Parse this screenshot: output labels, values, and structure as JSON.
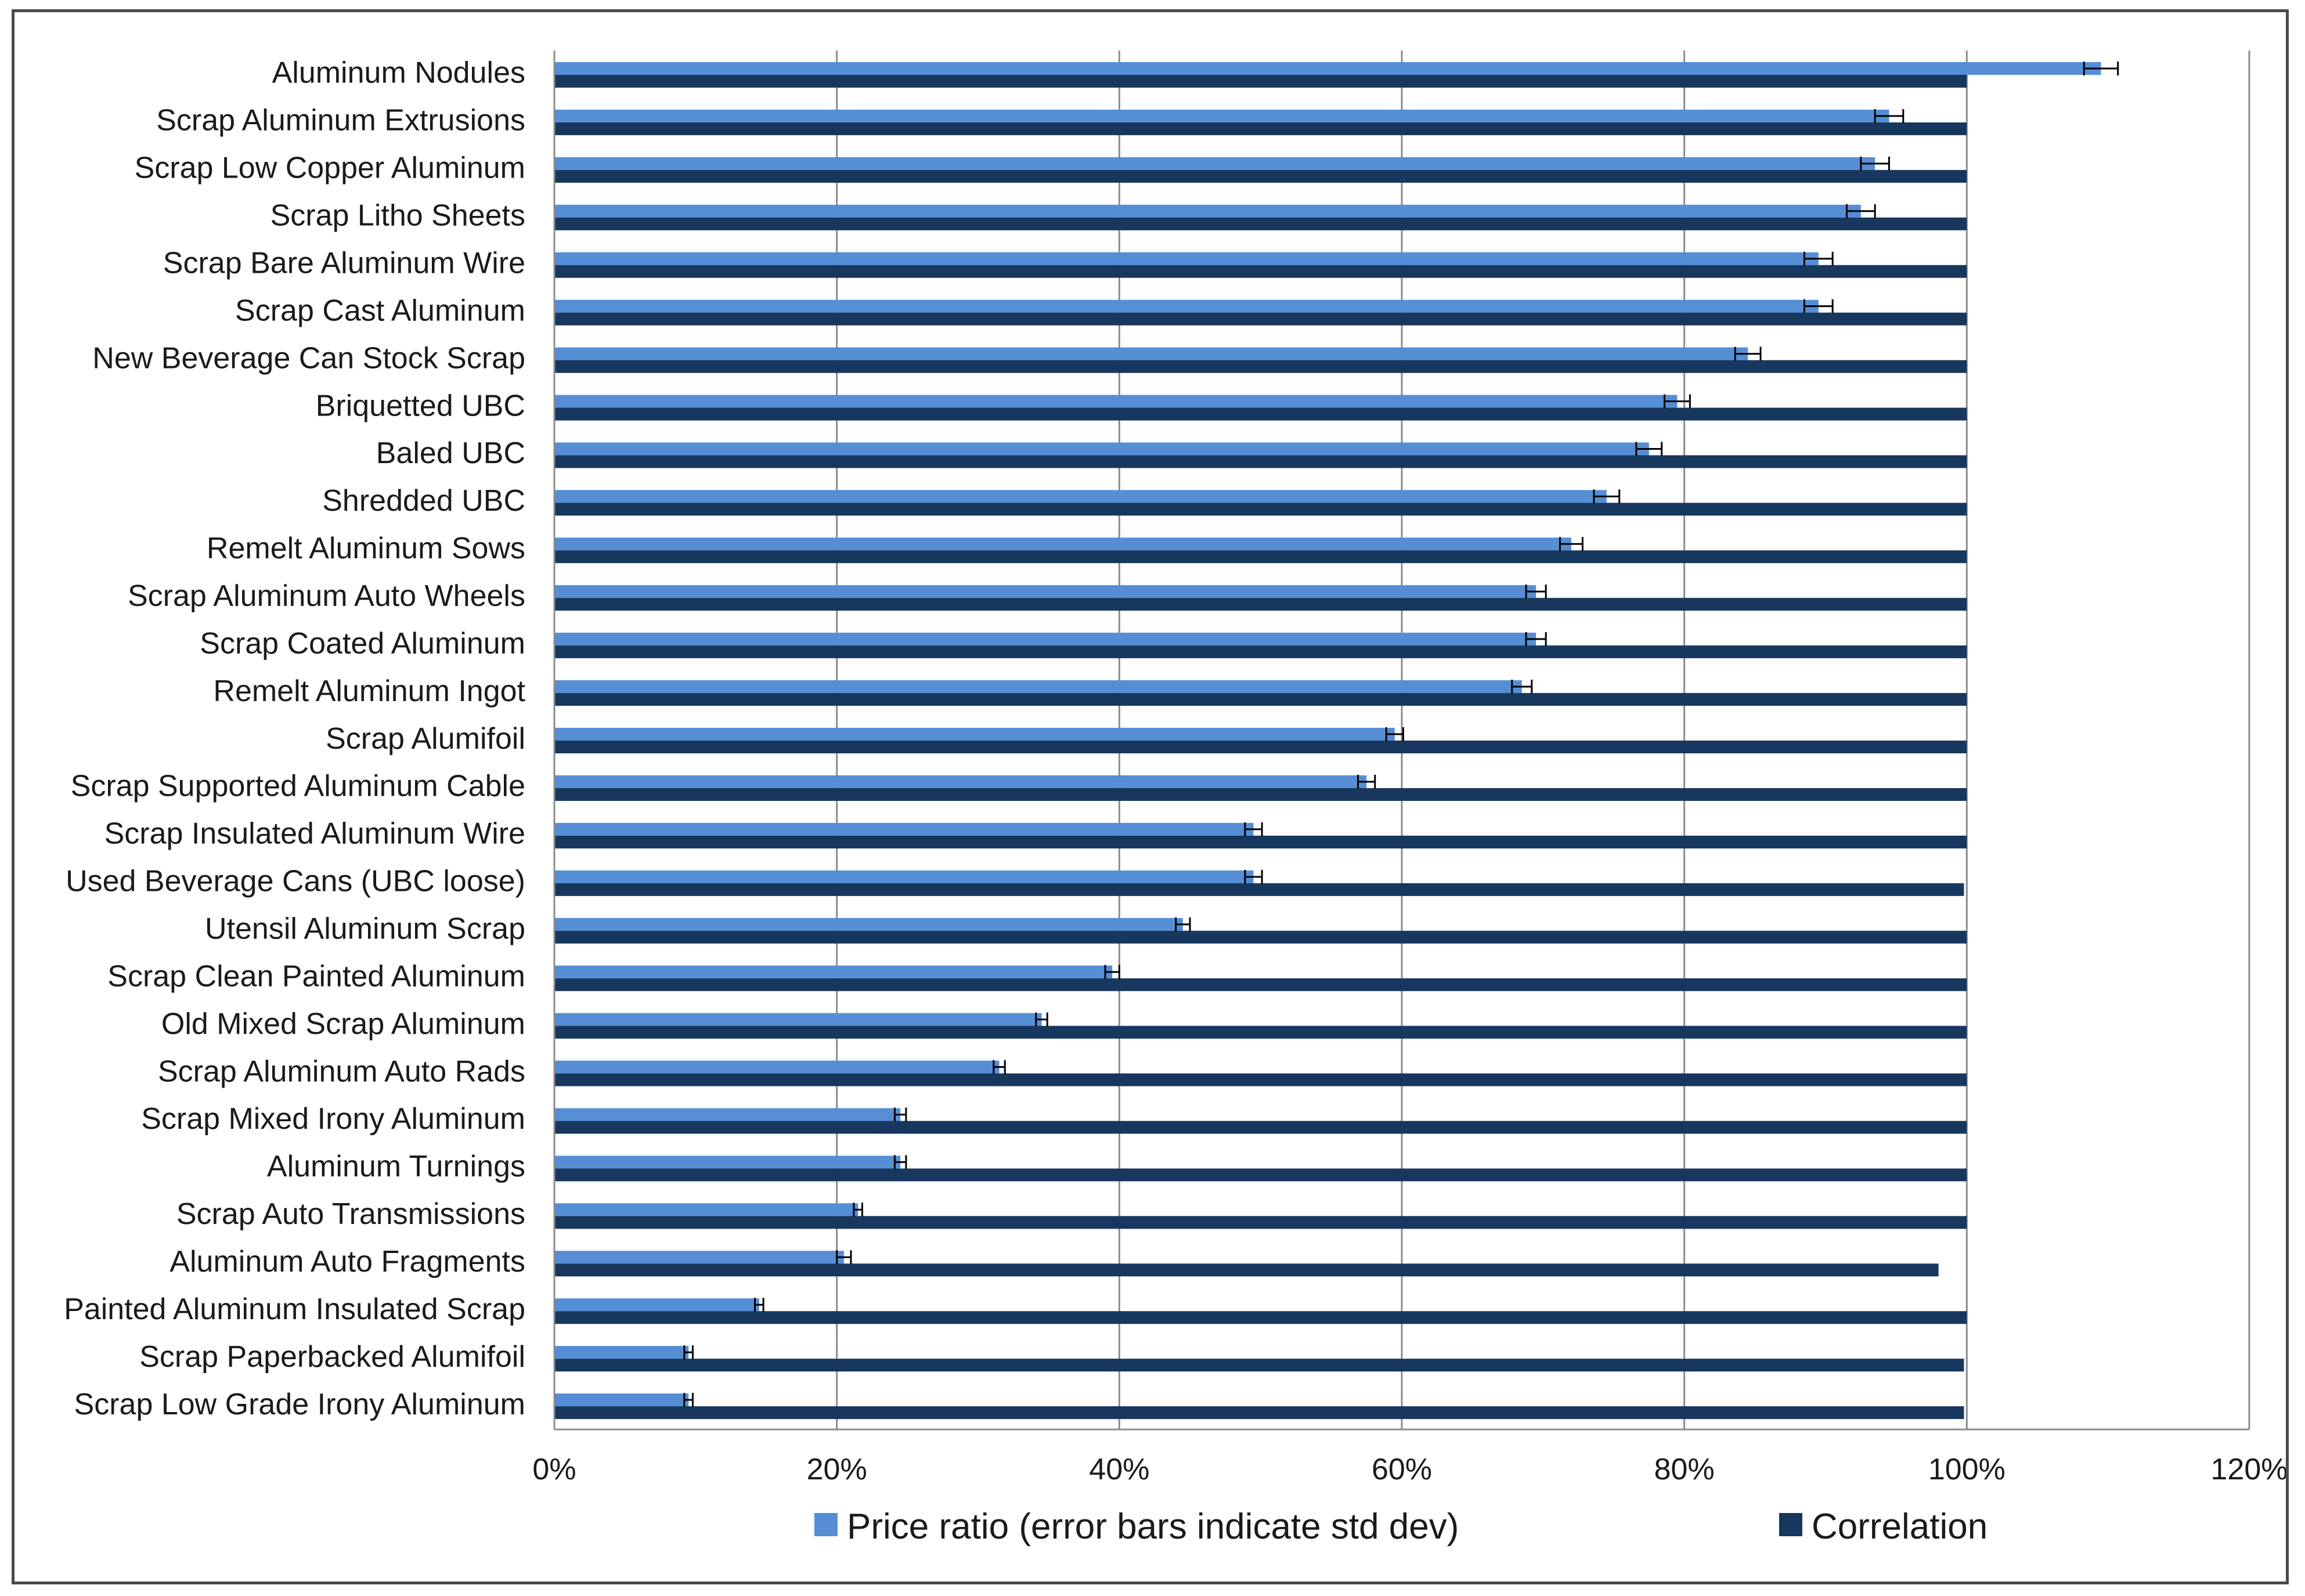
{
  "chart_data": {
    "type": "bar",
    "orientation": "horizontal",
    "title": "",
    "xlabel": "",
    "ylabel": "",
    "xlim": [
      0,
      1.2
    ],
    "x_ticks": [
      0,
      0.2,
      0.4,
      0.6,
      0.8,
      1.0,
      1.2
    ],
    "x_tick_labels": [
      "0%",
      "20%",
      "40%",
      "60%",
      "80%",
      "100%",
      "120%"
    ],
    "grid": true,
    "legend_position": "bottom",
    "categories": [
      "Aluminum Nodules",
      "Scrap Aluminum Extrusions",
      "Scrap Low Copper Aluminum",
      "Scrap Litho Sheets",
      "Scrap Bare Aluminum Wire",
      "Scrap Cast Aluminum",
      "New Beverage Can Stock Scrap",
      "Briquetted UBC",
      "Baled UBC",
      "Shredded UBC",
      "Remelt Aluminum Sows",
      "Scrap Aluminum Auto Wheels",
      "Scrap Coated Aluminum",
      "Remelt Aluminum Ingot",
      "Scrap Alumifoil",
      "Scrap Supported Aluminum Cable",
      "Scrap Insulated Aluminum Wire",
      "Used Beverage Cans (UBC loose)",
      "Utensil Aluminum Scrap",
      "Scrap Clean Painted Aluminum",
      "Old Mixed Scrap Aluminum",
      "Scrap Aluminum Auto Rads",
      "Scrap Mixed Irony Aluminum",
      "Aluminum Turnings",
      "Scrap Auto Transmissions",
      "Aluminum Auto Fragments",
      "Painted Aluminum Insulated Scrap",
      "Scrap Paperbacked Alumifoil",
      "Scrap Low Grade Irony Aluminum"
    ],
    "series": [
      {
        "name": "Price ratio (error bars indicate std dev)",
        "color": "#558ED5",
        "values": [
          1.095,
          0.945,
          0.935,
          0.925,
          0.895,
          0.895,
          0.845,
          0.795,
          0.775,
          0.745,
          0.72,
          0.695,
          0.695,
          0.685,
          0.595,
          0.575,
          0.495,
          0.495,
          0.445,
          0.395,
          0.345,
          0.315,
          0.245,
          0.245,
          0.215,
          0.205,
          0.145,
          0.095,
          0.095
        ],
        "error": [
          0.012,
          0.01,
          0.01,
          0.01,
          0.01,
          0.01,
          0.009,
          0.009,
          0.009,
          0.009,
          0.008,
          0.007,
          0.007,
          0.007,
          0.006,
          0.006,
          0.006,
          0.006,
          0.005,
          0.005,
          0.004,
          0.004,
          0.004,
          0.004,
          0.003,
          0.005,
          0.003,
          0.003,
          0.003
        ]
      },
      {
        "name": "Correlation",
        "color": "#17375E",
        "values": [
          1.0,
          1.0,
          1.0,
          1.0,
          1.0,
          1.0,
          1.0,
          1.0,
          1.0,
          1.0,
          1.0,
          1.0,
          1.0,
          1.0,
          1.0,
          1.0,
          1.0,
          0.998,
          1.0,
          1.0,
          1.0,
          1.0,
          1.0,
          1.0,
          1.0,
          0.98,
          1.0,
          0.998,
          0.998
        ]
      }
    ]
  }
}
